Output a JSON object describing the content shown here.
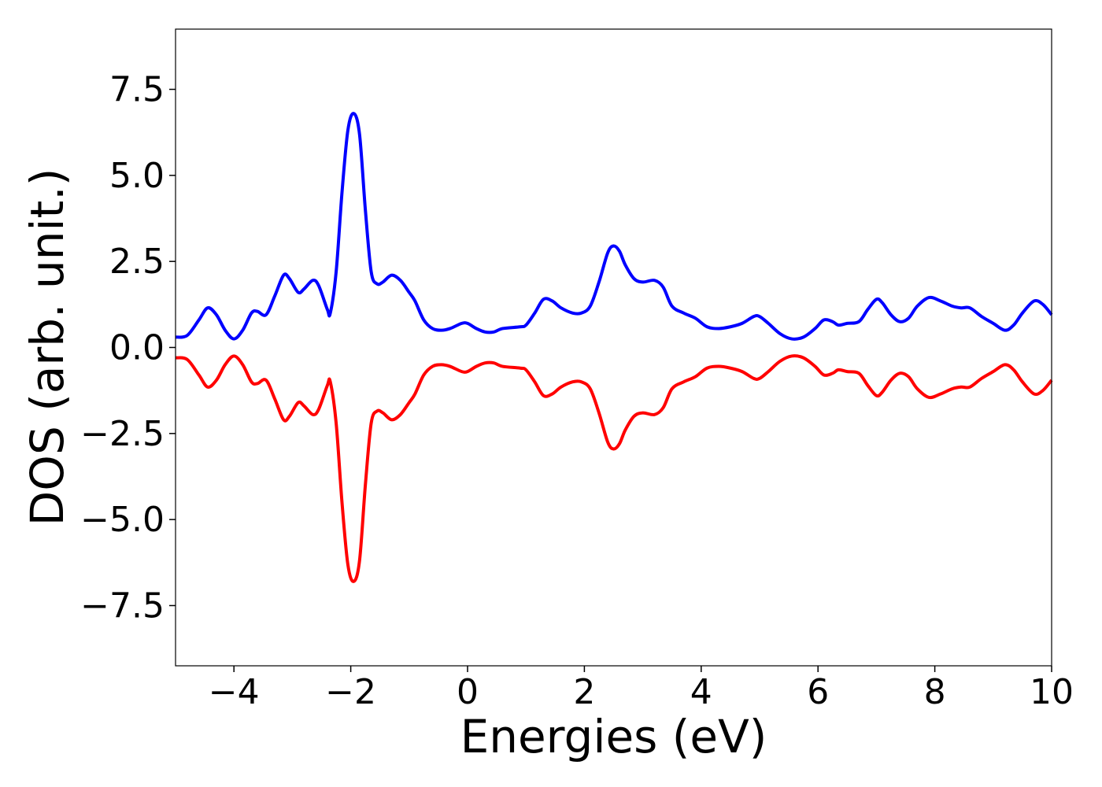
{
  "chart_data": {
    "type": "line",
    "title": "",
    "xlabel": "Energies (eV)",
    "ylabel": "DOS (arb. unit.)",
    "xlim": [
      -5,
      10
    ],
    "ylim": [
      -9.25,
      9.25
    ],
    "grid": false,
    "legend": "none",
    "x_ticks": [
      {
        "value": -4,
        "label": "−4"
      },
      {
        "value": -2,
        "label": "−2"
      },
      {
        "value": 0,
        "label": "0"
      },
      {
        "value": 2,
        "label": "2"
      },
      {
        "value": 4,
        "label": "4"
      },
      {
        "value": 6,
        "label": "6"
      },
      {
        "value": 8,
        "label": "8"
      },
      {
        "value": 10,
        "label": "10"
      }
    ],
    "y_ticks": [
      {
        "value": 7.5,
        "label": "7.5"
      },
      {
        "value": 5.0,
        "label": "5.0"
      },
      {
        "value": 2.5,
        "label": "2.5"
      },
      {
        "value": 0.0,
        "label": "0.0"
      },
      {
        "value": -2.5,
        "label": "−2.5"
      },
      {
        "value": -5.0,
        "label": "−5.0"
      },
      {
        "value": -7.5,
        "label": "−7.5"
      }
    ],
    "series": [
      {
        "color": "#0000ff",
        "points": [
          [
            -5.0,
            0.3
          ],
          [
            -4.8,
            0.35
          ],
          [
            -4.6,
            0.8
          ],
          [
            -4.45,
            1.15
          ],
          [
            -4.3,
            0.95
          ],
          [
            -4.15,
            0.5
          ],
          [
            -4.0,
            0.25
          ],
          [
            -3.85,
            0.5
          ],
          [
            -3.7,
            1.0
          ],
          [
            -3.6,
            1.05
          ],
          [
            -3.45,
            0.95
          ],
          [
            -3.3,
            1.5
          ],
          [
            -3.15,
            2.1
          ],
          [
            -3.05,
            2.0
          ],
          [
            -2.9,
            1.6
          ],
          [
            -2.8,
            1.7
          ],
          [
            -2.65,
            1.95
          ],
          [
            -2.55,
            1.8
          ],
          [
            -2.4,
            1.1
          ],
          [
            -2.35,
            1.0
          ],
          [
            -2.25,
            2.2
          ],
          [
            -2.15,
            4.5
          ],
          [
            -2.05,
            6.3
          ],
          [
            -1.95,
            6.8
          ],
          [
            -1.85,
            6.2
          ],
          [
            -1.75,
            4.0
          ],
          [
            -1.65,
            2.2
          ],
          [
            -1.55,
            1.85
          ],
          [
            -1.45,
            1.9
          ],
          [
            -1.3,
            2.1
          ],
          [
            -1.15,
            1.95
          ],
          [
            -1.0,
            1.6
          ],
          [
            -0.9,
            1.35
          ],
          [
            -0.75,
            0.8
          ],
          [
            -0.6,
            0.55
          ],
          [
            -0.45,
            0.5
          ],
          [
            -0.3,
            0.55
          ],
          [
            -0.1,
            0.7
          ],
          [
            0.0,
            0.7
          ],
          [
            0.15,
            0.55
          ],
          [
            0.3,
            0.45
          ],
          [
            0.45,
            0.45
          ],
          [
            0.6,
            0.55
          ],
          [
            0.9,
            0.6
          ],
          [
            1.0,
            0.65
          ],
          [
            1.15,
            1.0
          ],
          [
            1.3,
            1.4
          ],
          [
            1.45,
            1.35
          ],
          [
            1.6,
            1.15
          ],
          [
            1.8,
            1.0
          ],
          [
            1.95,
            1.0
          ],
          [
            2.1,
            1.2
          ],
          [
            2.25,
            1.9
          ],
          [
            2.4,
            2.75
          ],
          [
            2.5,
            2.95
          ],
          [
            2.6,
            2.8
          ],
          [
            2.7,
            2.4
          ],
          [
            2.85,
            2.0
          ],
          [
            3.0,
            1.9
          ],
          [
            3.2,
            1.95
          ],
          [
            3.35,
            1.75
          ],
          [
            3.5,
            1.2
          ],
          [
            3.7,
            1.0
          ],
          [
            3.9,
            0.85
          ],
          [
            4.1,
            0.6
          ],
          [
            4.3,
            0.55
          ],
          [
            4.5,
            0.6
          ],
          [
            4.7,
            0.7
          ],
          [
            4.9,
            0.9
          ],
          [
            5.0,
            0.9
          ],
          [
            5.15,
            0.7
          ],
          [
            5.35,
            0.4
          ],
          [
            5.55,
            0.25
          ],
          [
            5.75,
            0.3
          ],
          [
            5.95,
            0.55
          ],
          [
            6.1,
            0.8
          ],
          [
            6.25,
            0.75
          ],
          [
            6.35,
            0.65
          ],
          [
            6.5,
            0.7
          ],
          [
            6.7,
            0.75
          ],
          [
            6.85,
            1.1
          ],
          [
            7.0,
            1.4
          ],
          [
            7.1,
            1.3
          ],
          [
            7.25,
            0.95
          ],
          [
            7.4,
            0.75
          ],
          [
            7.55,
            0.85
          ],
          [
            7.7,
            1.2
          ],
          [
            7.9,
            1.45
          ],
          [
            8.1,
            1.35
          ],
          [
            8.3,
            1.2
          ],
          [
            8.45,
            1.15
          ],
          [
            8.6,
            1.15
          ],
          [
            8.8,
            0.9
          ],
          [
            9.0,
            0.7
          ],
          [
            9.2,
            0.5
          ],
          [
            9.35,
            0.65
          ],
          [
            9.5,
            1.0
          ],
          [
            9.7,
            1.35
          ],
          [
            9.85,
            1.25
          ],
          [
            10.0,
            0.95
          ]
        ]
      },
      {
        "color": "#ff0000",
        "points": [
          [
            -5.0,
            -0.3
          ],
          [
            -4.8,
            -0.35
          ],
          [
            -4.6,
            -0.8
          ],
          [
            -4.45,
            -1.15
          ],
          [
            -4.3,
            -0.95
          ],
          [
            -4.15,
            -0.5
          ],
          [
            -4.0,
            -0.25
          ],
          [
            -3.85,
            -0.5
          ],
          [
            -3.7,
            -1.0
          ],
          [
            -3.6,
            -1.05
          ],
          [
            -3.45,
            -0.95
          ],
          [
            -3.3,
            -1.5
          ],
          [
            -3.15,
            -2.1
          ],
          [
            -3.05,
            -2.0
          ],
          [
            -2.9,
            -1.6
          ],
          [
            -2.8,
            -1.7
          ],
          [
            -2.65,
            -1.95
          ],
          [
            -2.55,
            -1.8
          ],
          [
            -2.4,
            -1.1
          ],
          [
            -2.35,
            -1.0
          ],
          [
            -2.25,
            -2.2
          ],
          [
            -2.15,
            -4.5
          ],
          [
            -2.05,
            -6.3
          ],
          [
            -1.95,
            -6.8
          ],
          [
            -1.85,
            -6.2
          ],
          [
            -1.75,
            -4.0
          ],
          [
            -1.65,
            -2.2
          ],
          [
            -1.55,
            -1.85
          ],
          [
            -1.45,
            -1.9
          ],
          [
            -1.3,
            -2.1
          ],
          [
            -1.15,
            -1.95
          ],
          [
            -1.0,
            -1.6
          ],
          [
            -0.9,
            -1.35
          ],
          [
            -0.75,
            -0.8
          ],
          [
            -0.6,
            -0.55
          ],
          [
            -0.45,
            -0.5
          ],
          [
            -0.3,
            -0.55
          ],
          [
            -0.1,
            -0.7
          ],
          [
            0.0,
            -0.7
          ],
          [
            0.15,
            -0.55
          ],
          [
            0.3,
            -0.45
          ],
          [
            0.45,
            -0.45
          ],
          [
            0.6,
            -0.55
          ],
          [
            0.9,
            -0.6
          ],
          [
            1.0,
            -0.65
          ],
          [
            1.15,
            -1.0
          ],
          [
            1.3,
            -1.4
          ],
          [
            1.45,
            -1.35
          ],
          [
            1.6,
            -1.15
          ],
          [
            1.8,
            -1.0
          ],
          [
            1.95,
            -1.0
          ],
          [
            2.1,
            -1.2
          ],
          [
            2.25,
            -1.9
          ],
          [
            2.4,
            -2.75
          ],
          [
            2.5,
            -2.95
          ],
          [
            2.6,
            -2.8
          ],
          [
            2.7,
            -2.4
          ],
          [
            2.85,
            -2.0
          ],
          [
            3.0,
            -1.9
          ],
          [
            3.2,
            -1.95
          ],
          [
            3.35,
            -1.75
          ],
          [
            3.5,
            -1.2
          ],
          [
            3.7,
            -1.0
          ],
          [
            3.9,
            -0.85
          ],
          [
            4.1,
            -0.6
          ],
          [
            4.3,
            -0.55
          ],
          [
            4.5,
            -0.6
          ],
          [
            4.7,
            -0.7
          ],
          [
            4.9,
            -0.9
          ],
          [
            5.0,
            -0.9
          ],
          [
            5.15,
            -0.7
          ],
          [
            5.35,
            -0.4
          ],
          [
            5.55,
            -0.25
          ],
          [
            5.75,
            -0.3
          ],
          [
            5.95,
            -0.55
          ],
          [
            6.1,
            -0.8
          ],
          [
            6.25,
            -0.75
          ],
          [
            6.35,
            -0.65
          ],
          [
            6.5,
            -0.7
          ],
          [
            6.7,
            -0.75
          ],
          [
            6.85,
            -1.1
          ],
          [
            7.0,
            -1.4
          ],
          [
            7.1,
            -1.3
          ],
          [
            7.25,
            -0.95
          ],
          [
            7.4,
            -0.75
          ],
          [
            7.55,
            -0.85
          ],
          [
            7.7,
            -1.2
          ],
          [
            7.9,
            -1.45
          ],
          [
            8.1,
            -1.35
          ],
          [
            8.3,
            -1.2
          ],
          [
            8.45,
            -1.15
          ],
          [
            8.6,
            -1.15
          ],
          [
            8.8,
            -0.9
          ],
          [
            9.0,
            -0.7
          ],
          [
            9.2,
            -0.5
          ],
          [
            9.35,
            -0.65
          ],
          [
            9.5,
            -1.0
          ],
          [
            9.7,
            -1.35
          ],
          [
            9.85,
            -1.25
          ],
          [
            10.0,
            -0.95
          ]
        ]
      }
    ]
  }
}
